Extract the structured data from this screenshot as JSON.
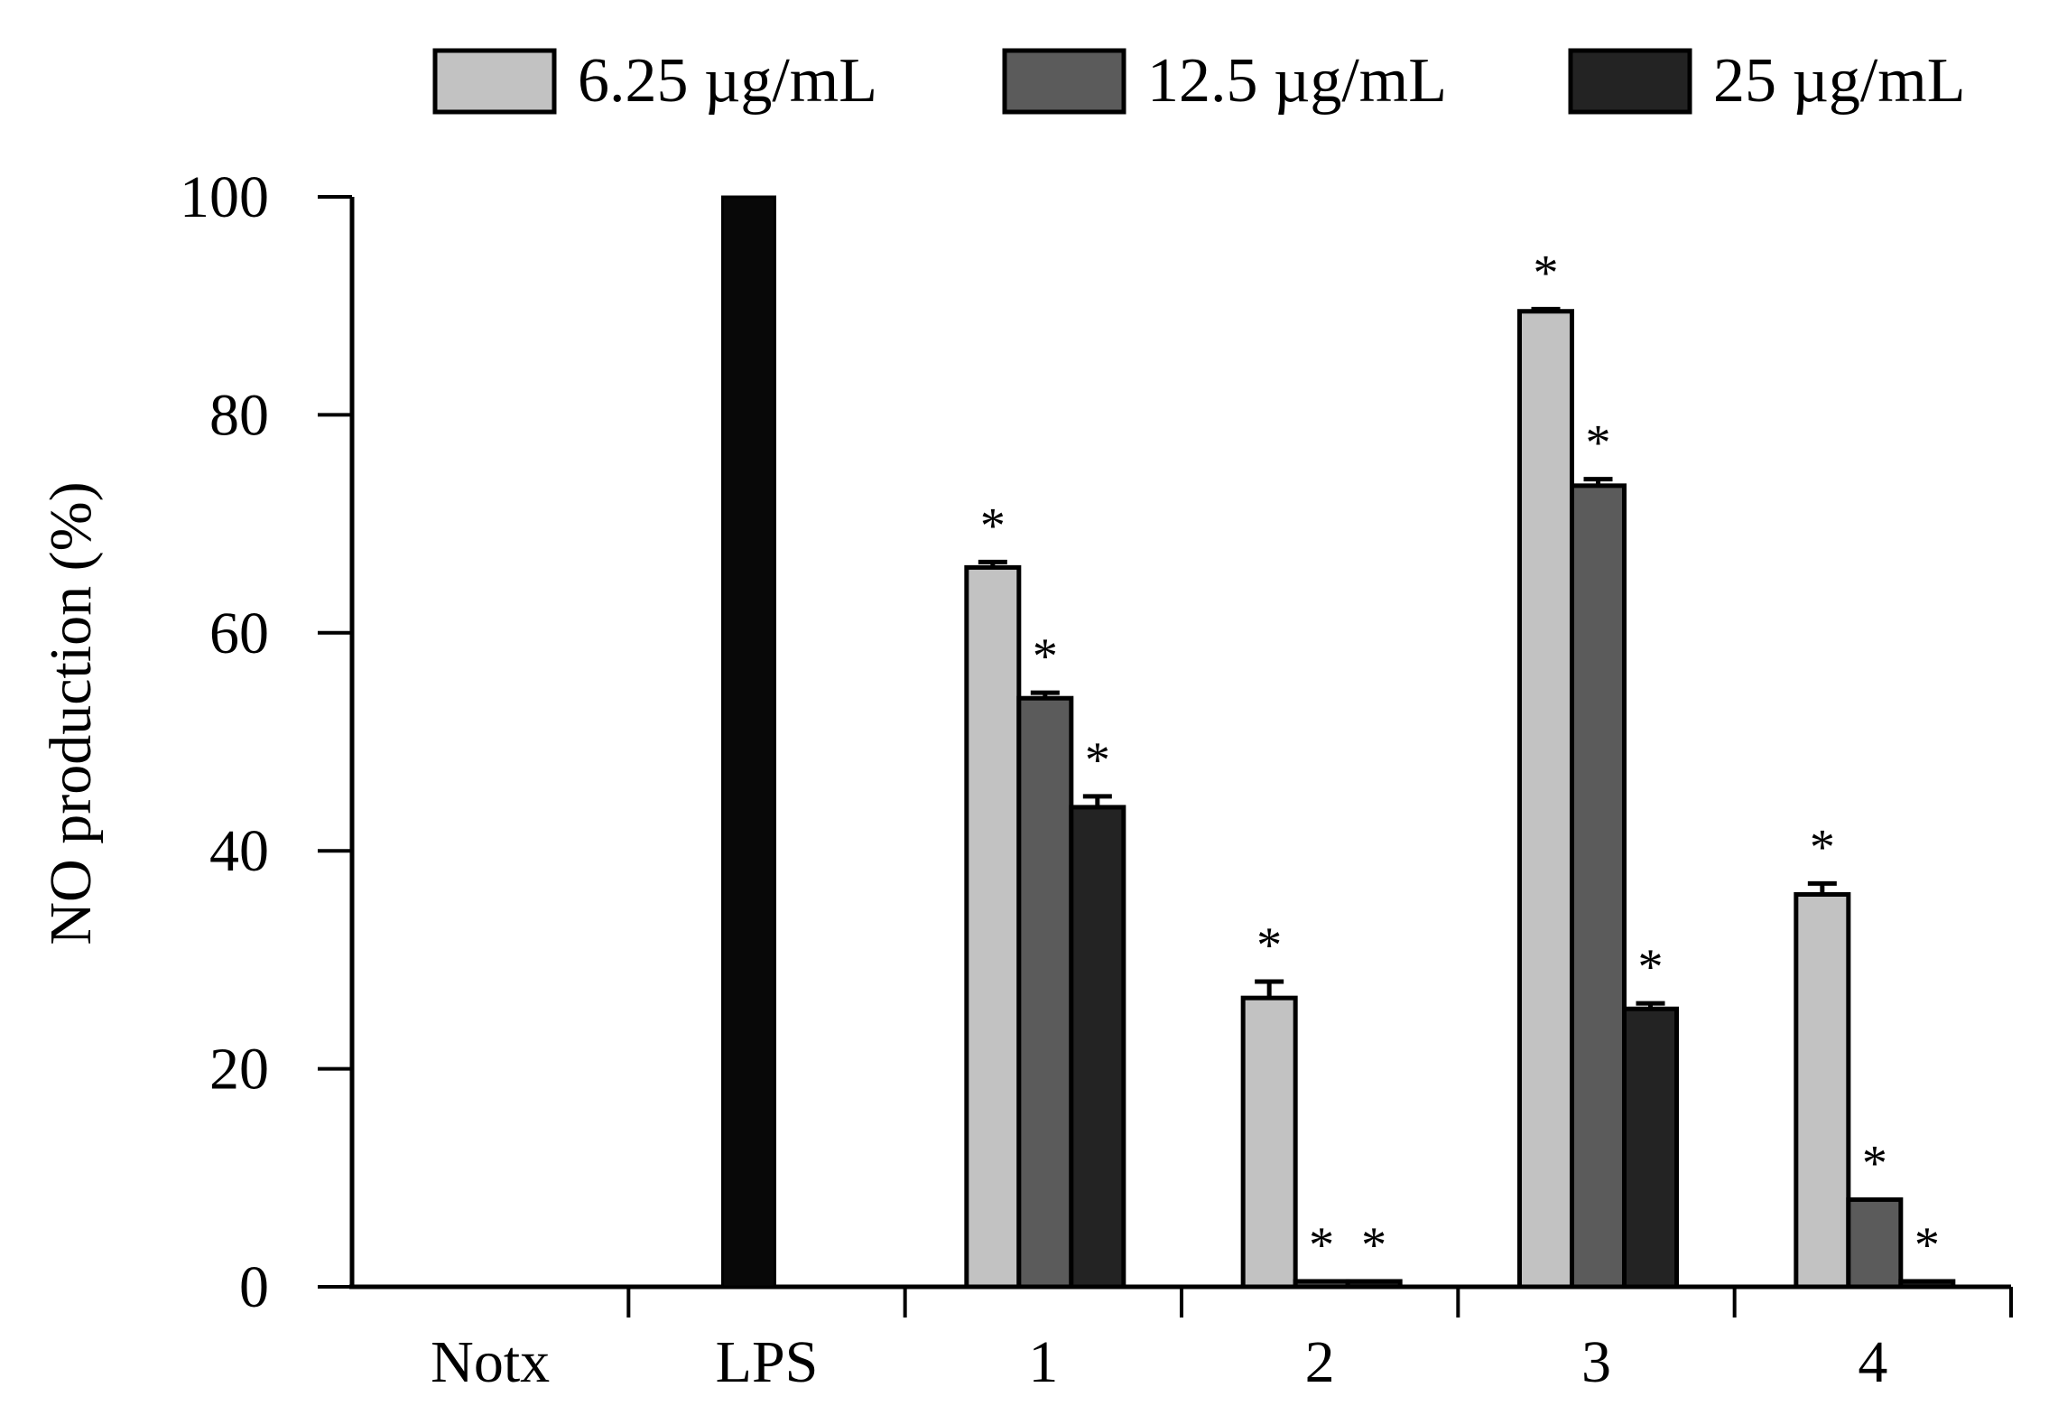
{
  "chart_data": {
    "type": "bar",
    "title": "",
    "xlabel": "",
    "ylabel": "NO production (%)",
    "ylim": [
      0,
      100
    ],
    "yticks": [
      "0",
      "20",
      "40",
      "60",
      "80",
      "100"
    ],
    "grid": false,
    "legend_position": "top",
    "colors": {
      "6.25": "#c2c2c2",
      "12.5": "#5b5b5b",
      "25": "#232323",
      "lps": "#080808",
      "axis": "#000000"
    },
    "legend": [
      {
        "name": "6.25  µg/mL",
        "color": "#c2c2c2"
      },
      {
        "name": "12.5  µg/mL",
        "color": "#5b5b5b"
      },
      {
        "name": "25  µg/mL",
        "color": "#232323"
      }
    ],
    "categories": [
      "Notx",
      "LPS",
      "1",
      "2",
      "3",
      "4"
    ],
    "controls": [
      {
        "category": "Notx",
        "value": 0
      },
      {
        "category": "LPS",
        "value": 100
      }
    ],
    "series": [
      {
        "name": "6.25 µg/mL",
        "values": [
          null,
          null,
          66,
          26.5,
          89.5,
          36
        ],
        "errors": [
          null,
          null,
          0.5,
          1.5,
          0.2,
          1.0
        ],
        "significant": [
          false,
          false,
          true,
          true,
          true,
          true
        ]
      },
      {
        "name": "12.5 µg/mL",
        "values": [
          null,
          null,
          54,
          0.5,
          73.5,
          8
        ],
        "errors": [
          null,
          null,
          0.5,
          0,
          0.6,
          0
        ],
        "significant": [
          false,
          false,
          true,
          true,
          true,
          true
        ]
      },
      {
        "name": "25 µg/mL",
        "values": [
          null,
          null,
          44,
          0.5,
          25.5,
          0.5
        ],
        "errors": [
          null,
          null,
          1.0,
          0,
          0.5,
          0
        ],
        "significant": [
          false,
          false,
          true,
          true,
          true,
          true
        ]
      }
    ],
    "significance_marker": "*"
  }
}
